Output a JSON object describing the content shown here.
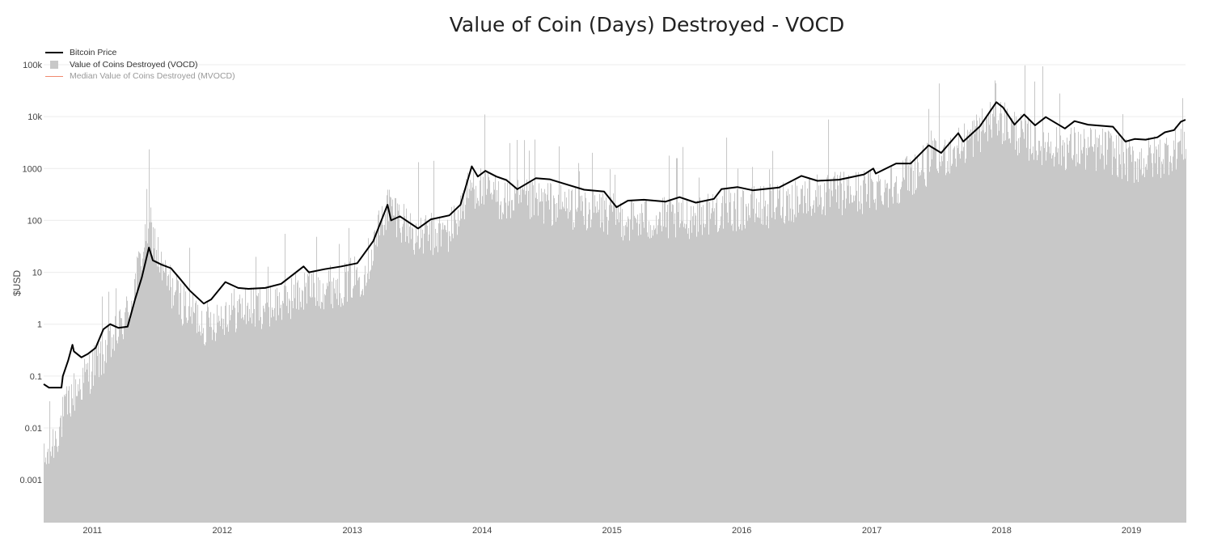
{
  "chart_data": {
    "type": "line",
    "title": "Value of Coin (Days) Destroyed - VOCD",
    "ylabel": "$USD",
    "xlabel": "",
    "y_scale": "log",
    "ylim": [
      0.00015,
      100000
    ],
    "xlim": [
      "2010-08-17",
      "2019-06-02"
    ],
    "grid": true,
    "legend_position": "top-left",
    "y_ticks": [
      {
        "value": 0.001,
        "label": "0.001"
      },
      {
        "value": 0.01,
        "label": "0.01"
      },
      {
        "value": 0.1,
        "label": "0.1"
      },
      {
        "value": 1,
        "label": "1"
      },
      {
        "value": 10,
        "label": "10"
      },
      {
        "value": 100,
        "label": "100"
      },
      {
        "value": 1000,
        "label": "1000"
      },
      {
        "value": 10000,
        "label": "10k"
      },
      {
        "value": 100000,
        "label": "100k"
      }
    ],
    "x_ticks": [
      {
        "date": "2011-01-01",
        "label": "2011"
      },
      {
        "date": "2012-01-01",
        "label": "2012"
      },
      {
        "date": "2013-01-01",
        "label": "2013"
      },
      {
        "date": "2014-01-01",
        "label": "2014"
      },
      {
        "date": "2015-01-01",
        "label": "2015"
      },
      {
        "date": "2016-01-01",
        "label": "2016"
      },
      {
        "date": "2017-01-01",
        "label": "2017"
      },
      {
        "date": "2018-01-01",
        "label": "2018"
      },
      {
        "date": "2019-01-01",
        "label": "2019"
      }
    ],
    "series": [
      {
        "name": "Bitcoin Price",
        "kind": "line",
        "color": "#000000",
        "points": [
          [
            "2010-08-17",
            0.07
          ],
          [
            "2010-09-01",
            0.06
          ],
          [
            "2010-10-06",
            0.06
          ],
          [
            "2010-10-10",
            0.1
          ],
          [
            "2010-10-25",
            0.2
          ],
          [
            "2010-11-06",
            0.4
          ],
          [
            "2010-11-10",
            0.3
          ],
          [
            "2010-12-01",
            0.23
          ],
          [
            "2010-12-20",
            0.27
          ],
          [
            "2011-01-10",
            0.35
          ],
          [
            "2011-02-01",
            0.8
          ],
          [
            "2011-02-20",
            1.0
          ],
          [
            "2011-03-15",
            0.85
          ],
          [
            "2011-04-10",
            0.9
          ],
          [
            "2011-05-01",
            3.0
          ],
          [
            "2011-05-20",
            8.0
          ],
          [
            "2011-06-09",
            30
          ],
          [
            "2011-06-20",
            17
          ],
          [
            "2011-07-15",
            14
          ],
          [
            "2011-08-10",
            12
          ],
          [
            "2011-09-01",
            8
          ],
          [
            "2011-10-01",
            4.5
          ],
          [
            "2011-11-10",
            2.5
          ],
          [
            "2011-12-01",
            3.0
          ],
          [
            "2012-01-10",
            6.5
          ],
          [
            "2012-02-15",
            5.0
          ],
          [
            "2012-03-15",
            4.8
          ],
          [
            "2012-05-01",
            5.0
          ],
          [
            "2012-06-15",
            6.0
          ],
          [
            "2012-08-17",
            13
          ],
          [
            "2012-09-01",
            10
          ],
          [
            "2012-10-15",
            11.5
          ],
          [
            "2012-12-01",
            13
          ],
          [
            "2013-01-15",
            15
          ],
          [
            "2013-03-01",
            40
          ],
          [
            "2013-04-10",
            200
          ],
          [
            "2013-04-20",
            100
          ],
          [
            "2013-05-15",
            120
          ],
          [
            "2013-07-05",
            70
          ],
          [
            "2013-08-10",
            105
          ],
          [
            "2013-10-01",
            125
          ],
          [
            "2013-11-01",
            200
          ],
          [
            "2013-12-03",
            1100
          ],
          [
            "2013-12-20",
            700
          ],
          [
            "2014-01-10",
            900
          ],
          [
            "2014-02-10",
            700
          ],
          [
            "2014-03-10",
            600
          ],
          [
            "2014-04-10",
            400
          ],
          [
            "2014-06-01",
            650
          ],
          [
            "2014-07-10",
            620
          ],
          [
            "2014-09-01",
            480
          ],
          [
            "2014-10-15",
            390
          ],
          [
            "2014-12-10",
            360
          ],
          [
            "2015-01-14",
            180
          ],
          [
            "2015-02-15",
            240
          ],
          [
            "2015-04-01",
            250
          ],
          [
            "2015-06-01",
            230
          ],
          [
            "2015-07-10",
            280
          ],
          [
            "2015-08-25",
            220
          ],
          [
            "2015-10-15",
            260
          ],
          [
            "2015-11-05",
            400
          ],
          [
            "2015-12-20",
            440
          ],
          [
            "2016-02-01",
            380
          ],
          [
            "2016-04-15",
            430
          ],
          [
            "2016-06-17",
            720
          ],
          [
            "2016-08-01",
            580
          ],
          [
            "2016-10-01",
            610
          ],
          [
            "2016-12-10",
            770
          ],
          [
            "2017-01-05",
            1000
          ],
          [
            "2017-01-12",
            800
          ],
          [
            "2017-03-10",
            1250
          ],
          [
            "2017-04-20",
            1250
          ],
          [
            "2017-06-10",
            2800
          ],
          [
            "2017-07-15",
            2000
          ],
          [
            "2017-09-01",
            4800
          ],
          [
            "2017-09-15",
            3300
          ],
          [
            "2017-11-01",
            6500
          ],
          [
            "2017-12-17",
            19000
          ],
          [
            "2018-01-05",
            15000
          ],
          [
            "2018-02-06",
            7000
          ],
          [
            "2018-03-05",
            11000
          ],
          [
            "2018-04-05",
            6800
          ],
          [
            "2018-05-05",
            9800
          ],
          [
            "2018-06-28",
            5900
          ],
          [
            "2018-07-25",
            8200
          ],
          [
            "2018-09-01",
            7000
          ],
          [
            "2018-11-10",
            6400
          ],
          [
            "2018-12-15",
            3300
          ],
          [
            "2019-01-10",
            3700
          ],
          [
            "2019-02-10",
            3600
          ],
          [
            "2019-03-15",
            4000
          ],
          [
            "2019-04-05",
            5000
          ],
          [
            "2019-05-01",
            5500
          ],
          [
            "2019-05-20",
            8000
          ],
          [
            "2019-06-02",
            8700
          ]
        ]
      },
      {
        "name": "Value of Coins Destroyed (VOCD)",
        "kind": "bar",
        "color": "#c8c8c8",
        "envelope_points": [
          [
            "2010-08-17",
            0.002
          ],
          [
            "2010-09-15",
            0.006
          ],
          [
            "2010-11-01",
            0.04
          ],
          [
            "2011-01-01",
            0.15
          ],
          [
            "2011-03-01",
            0.5
          ],
          [
            "2011-04-15",
            2
          ],
          [
            "2011-06-09",
            100
          ],
          [
            "2011-07-15",
            10
          ],
          [
            "2011-09-01",
            3
          ],
          [
            "2011-11-15",
            1
          ],
          [
            "2012-01-15",
            1.8
          ],
          [
            "2012-06-01",
            2.5
          ],
          [
            "2012-09-01",
            5
          ],
          [
            "2012-12-01",
            6
          ],
          [
            "2013-02-01",
            10
          ],
          [
            "2013-04-10",
            200
          ],
          [
            "2013-07-01",
            50
          ],
          [
            "2013-10-01",
            60
          ],
          [
            "2013-12-03",
            500
          ],
          [
            "2014-03-01",
            250
          ],
          [
            "2014-07-01",
            220
          ],
          [
            "2014-12-01",
            150
          ],
          [
            "2015-03-01",
            100
          ],
          [
            "2015-07-01",
            110
          ],
          [
            "2015-11-01",
            160
          ],
          [
            "2016-03-01",
            180
          ],
          [
            "2016-07-01",
            300
          ],
          [
            "2016-12-01",
            350
          ],
          [
            "2017-03-01",
            500
          ],
          [
            "2017-06-01",
            1200
          ],
          [
            "2017-09-01",
            2500
          ],
          [
            "2017-12-17",
            10000
          ],
          [
            "2018-03-01",
            4000
          ],
          [
            "2018-07-01",
            2500
          ],
          [
            "2018-11-01",
            2200
          ],
          [
            "2019-01-01",
            1300
          ],
          [
            "2019-04-01",
            1800
          ],
          [
            "2019-06-02",
            3500
          ]
        ]
      },
      {
        "name": "Median Value of Coins Destroyed (MVOCD)",
        "kind": "line",
        "color": "#f08a6f",
        "visible": false
      }
    ]
  },
  "legend": {
    "items": [
      {
        "label": "Bitcoin Price"
      },
      {
        "label": "Value of Coins Destroyed (VOCD)"
      },
      {
        "label": "Median Value of Coins Destroyed (MVOCD)"
      }
    ]
  }
}
